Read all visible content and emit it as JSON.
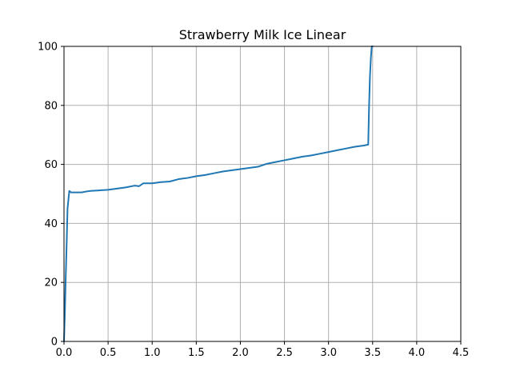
{
  "chart_data": {
    "type": "line",
    "title": "Strawberry Milk Ice Linear",
    "xlabel": "",
    "ylabel": "",
    "xlim": [
      0.0,
      4.5
    ],
    "ylim": [
      0,
      100
    ],
    "xticks": [
      0.0,
      0.5,
      1.0,
      1.5,
      2.0,
      2.5,
      3.0,
      3.5,
      4.0,
      4.5
    ],
    "xtick_labels": [
      "0.0",
      "0.5",
      "1.0",
      "1.5",
      "2.0",
      "2.5",
      "3.0",
      "3.5",
      "4.0",
      "4.5"
    ],
    "yticks": [
      0,
      20,
      40,
      60,
      80,
      100
    ],
    "ytick_labels": [
      "0",
      "20",
      "40",
      "60",
      "80",
      "100"
    ],
    "grid": true,
    "line_color": "#1f77b4",
    "grid_color": "#b0b0b0",
    "series": [
      {
        "name": "",
        "x": [
          0.0,
          0.01,
          0.02,
          0.03,
          0.04,
          0.05,
          0.06,
          0.08,
          0.1,
          0.15,
          0.2,
          0.25,
          0.3,
          0.4,
          0.5,
          0.6,
          0.7,
          0.8,
          0.85,
          0.9,
          1.0,
          1.1,
          1.2,
          1.3,
          1.4,
          1.5,
          1.6,
          1.7,
          1.8,
          1.9,
          2.0,
          2.1,
          2.2,
          2.3,
          2.4,
          2.5,
          2.6,
          2.7,
          2.8,
          2.9,
          3.0,
          3.1,
          3.2,
          3.3,
          3.4,
          3.45,
          3.46,
          3.47,
          3.48,
          3.49,
          3.5
        ],
        "y": [
          0,
          10,
          22,
          33,
          45,
          48,
          51,
          50.5,
          50.5,
          50.5,
          50.5,
          50.8,
          51,
          51.2,
          51.4,
          51.8,
          52.2,
          52.8,
          52.6,
          53.6,
          53.6,
          54,
          54.2,
          55,
          55.4,
          56,
          56.4,
          57,
          57.6,
          58,
          58.4,
          58.8,
          59.2,
          60.2,
          60.8,
          61.4,
          62,
          62.6,
          63,
          63.6,
          64.2,
          64.8,
          65.4,
          66,
          66.4,
          66.7,
          80,
          90,
          96,
          100,
          100
        ]
      }
    ]
  }
}
